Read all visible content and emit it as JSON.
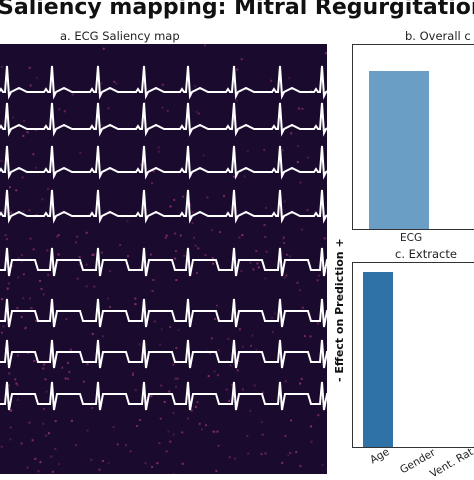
{
  "title": "Saliency mapping: Mitral Regurgitation",
  "chart_data": [
    {
      "panel": "a",
      "type": "heatmap",
      "title": "a. ECG Saliency map",
      "leads": 8,
      "colors": {
        "background": "#1a0b2e",
        "trace": "#ffffff",
        "saliency": "#b03a7a"
      }
    },
    {
      "panel": "b",
      "type": "bar",
      "title": "b. Overall c",
      "categories": [
        "ECG"
      ],
      "values": [
        0.86
      ],
      "ylim": [
        0,
        1
      ],
      "colors": {
        "bar": "#6a9ec5"
      }
    },
    {
      "panel": "c",
      "type": "bar",
      "title": "c. Extracte",
      "ylabel": "- Effect on Prediction +",
      "categories": [
        "Age",
        "Gender",
        "Vent. Rat"
      ],
      "values": [
        0.95,
        0,
        0
      ],
      "ylim": [
        0,
        1
      ],
      "colors": {
        "bar": "#2f72a8"
      }
    }
  ]
}
